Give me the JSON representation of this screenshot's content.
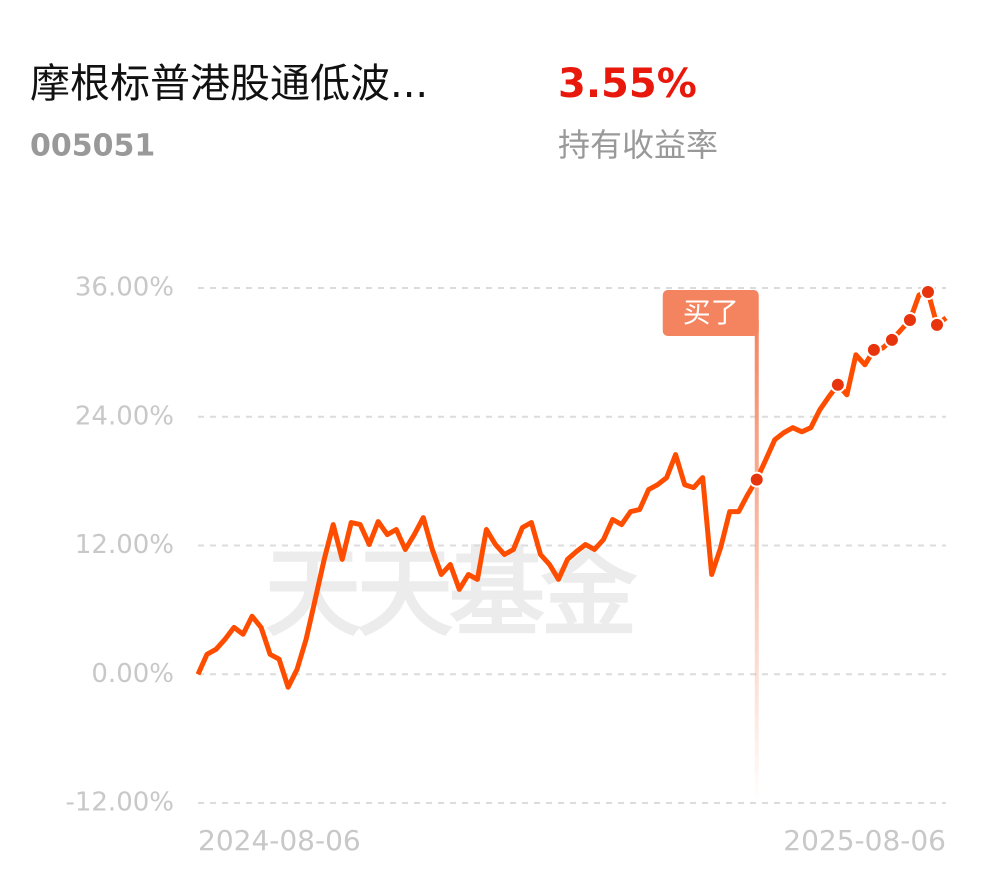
{
  "header": {
    "title": "摩根标普港股通低波...",
    "code": "005051",
    "return": "3.55%",
    "return_label": "持有收益率"
  },
  "chart_data": {
    "type": "line",
    "categories": [
      "2024-08-06",
      null,
      null,
      null,
      null,
      null,
      null,
      null,
      null,
      null,
      null,
      null,
      null,
      null,
      null,
      null,
      null,
      null,
      null,
      null,
      null,
      null,
      null,
      null,
      null,
      null,
      null,
      null,
      null,
      null,
      null,
      null,
      null,
      null,
      null,
      null,
      null,
      null,
      null,
      null,
      null,
      null,
      null,
      null,
      null,
      null,
      null,
      null,
      null,
      null,
      null,
      null,
      null,
      null,
      null,
      null,
      null,
      null,
      null,
      null,
      null,
      null,
      null,
      null,
      null,
      null,
      null,
      null,
      null,
      null,
      null,
      null,
      null,
      null,
      null,
      null,
      null,
      null,
      null,
      null,
      null,
      null,
      null,
      "2025-08-06"
    ],
    "values": [
      0,
      1.86,
      2.33,
      3.26,
      4.37,
      3.72,
      5.4,
      4.37,
      1.86,
      1.4,
      -1.21,
      0.47,
      3.26,
      6.98,
      10.7,
      13.95,
      10.7,
      14.14,
      13.95,
      12.09,
      14.23,
      13.02,
      13.49,
      11.63,
      13.02,
      14.6,
      11.63,
      9.3,
      10.23,
      7.91,
      9.3,
      8.84,
      13.49,
      12.09,
      11.16,
      11.63,
      13.67,
      14.14,
      11.16,
      10.23,
      8.84,
      10.7,
      11.44,
      12.09,
      11.63,
      12.56,
      14.42,
      13.95,
      15.16,
      15.35,
      17.21,
      17.67,
      18.33,
      20.47,
      17.67,
      17.4,
      18.33,
      9.3,
      11.81,
      15.16,
      15.16,
      16.74,
      18.14,
      20.0,
      21.86,
      22.51,
      22.98,
      22.6,
      22.98,
      24.65,
      25.86,
      26.98,
      26.05,
      29.77,
      28.84,
      30.23,
      30.42,
      31.16,
      32.09,
      33.02,
      35.35,
      35.63,
      32.56,
      33.21
    ],
    "color": "#ff4d00",
    "markers": [
      62,
      71,
      75,
      77,
      79,
      81,
      82
    ],
    "annotation": {
      "label": "买了",
      "index": 62
    },
    "watermark": "天天基金",
    "ylim": [
      -12,
      36
    ],
    "yticks": [
      {
        "value": -12,
        "label": "-12.00%"
      },
      {
        "value": 0,
        "label": "0.00%"
      },
      {
        "value": 12,
        "label": "12.00%"
      },
      {
        "value": 24,
        "label": "24.00%"
      },
      {
        "value": 36,
        "label": "36.00%"
      }
    ],
    "grid": true
  }
}
